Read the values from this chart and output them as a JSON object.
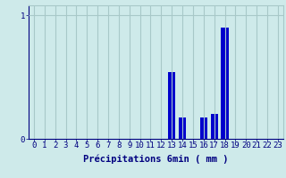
{
  "hours": [
    0,
    1,
    2,
    3,
    4,
    5,
    6,
    7,
    8,
    9,
    10,
    11,
    12,
    13,
    14,
    15,
    16,
    17,
    18,
    19,
    20,
    21,
    22,
    23
  ],
  "values": [
    0,
    0,
    0,
    0,
    0,
    0,
    0,
    0,
    0,
    0,
    0,
    0,
    0,
    0.54,
    0.17,
    0,
    0.17,
    0.2,
    0.9,
    0,
    0,
    0,
    0,
    0
  ],
  "bar_color": "#0000cc",
  "background_color": "#ceeaea",
  "grid_color": "#a8c8c8",
  "axis_color": "#000080",
  "text_color": "#000080",
  "xlabel": "Précipitations 6min ( mm )",
  "ylim": [
    0,
    1.08
  ],
  "yticks": [
    0,
    1
  ],
  "ytick_labels": [
    "0",
    "1"
  ],
  "xlim": [
    -0.5,
    23.5
  ],
  "label_fontsize": 7.5,
  "tick_fontsize": 6.5,
  "bar_width": 0.7
}
